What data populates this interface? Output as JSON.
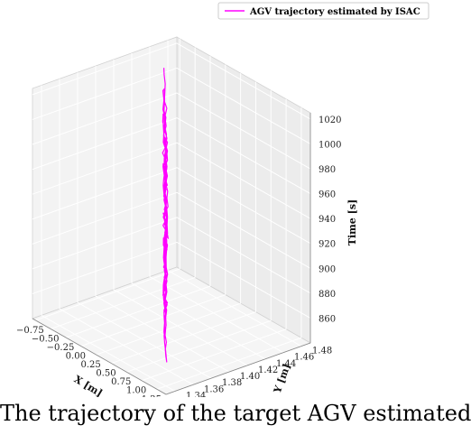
{
  "chart_data": {
    "type": "line",
    "projection": "3d",
    "series": [
      {
        "name": "AGV trajectory estimated by ISAC",
        "color": "#ff00ff",
        "description_points": [
          {
            "x": 1.25,
            "y": 1.34,
            "t": 850
          },
          {
            "x": -0.7,
            "y": 1.47,
            "t": 1010
          }
        ]
      }
    ],
    "passes": [
      {
        "t": 855,
        "dir": "to_x_max"
      },
      {
        "t": 865,
        "dir": "to_x_min"
      },
      {
        "t": 875,
        "dir": "to_x_max"
      },
      {
        "t": 885,
        "dir": "to_x_min"
      },
      {
        "t": 895,
        "dir": "to_x_max"
      },
      {
        "t": 905,
        "dir": "to_x_min"
      },
      {
        "t": 915,
        "dir": "to_x_max"
      },
      {
        "t": 925,
        "dir": "to_x_min"
      },
      {
        "t": 935,
        "dir": "to_x_max"
      },
      {
        "t": 945,
        "dir": "to_x_min"
      },
      {
        "t": 955,
        "dir": "to_x_max"
      },
      {
        "t": 965,
        "dir": "to_x_min"
      },
      {
        "t": 975,
        "dir": "to_x_max"
      },
      {
        "t": 985,
        "dir": "to_x_min"
      },
      {
        "t": 995,
        "dir": "to_x_max"
      },
      {
        "t": 1005,
        "dir": "to_x_min"
      }
    ],
    "xlabel": "X [m]",
    "ylabel": "Y [m]",
    "zlabel": "Time [s]",
    "xlim": [
      -0.8,
      1.4
    ],
    "ylim": [
      1.33,
      1.49
    ],
    "zlim": [
      840,
      1025
    ],
    "x_ticks": [
      "−0.75",
      "−0.50",
      "−0.25",
      "0.00",
      "0.25",
      "0.50",
      "0.75",
      "1.00",
      "1.25"
    ],
    "x_tick_values": [
      -0.75,
      -0.5,
      -0.25,
      0.0,
      0.25,
      0.5,
      0.75,
      1.0,
      1.25
    ],
    "y_ticks": [
      "1.34",
      "1.36",
      "1.38",
      "1.40",
      "1.42",
      "1.44",
      "1.46",
      "1.48"
    ],
    "y_tick_values": [
      1.34,
      1.36,
      1.38,
      1.4,
      1.42,
      1.44,
      1.46,
      1.48
    ],
    "z_ticks": [
      "860",
      "880",
      "900",
      "920",
      "940",
      "960",
      "980",
      "1000",
      "1020"
    ],
    "z_tick_values": [
      860,
      880,
      900,
      920,
      940,
      960,
      980,
      1000,
      1020
    ],
    "grid": true,
    "legend_position": "top-right"
  },
  "caption": {
    "text": "The trajectory of the target AGV estimated b"
  }
}
